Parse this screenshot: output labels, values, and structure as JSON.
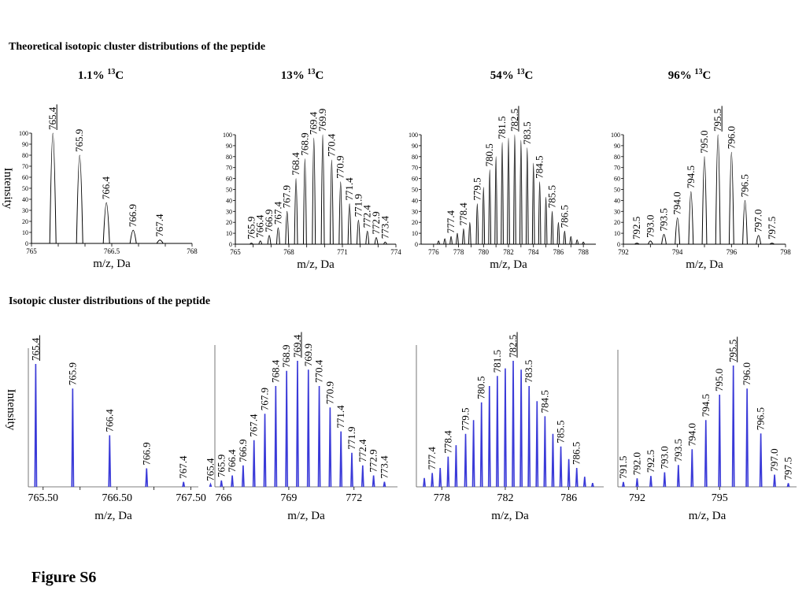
{
  "figure": {
    "section_theoretical": "Theoretical isotopic cluster distributions of the peptide",
    "section_observed": "Isotopic cluster distributions of the peptide",
    "label": "Figure S6"
  },
  "colors": {
    "theoretical": "#000000",
    "observed": "#3a3ad8"
  },
  "chart_data": [
    {
      "type": "bar",
      "group": "theoretical",
      "title_pre": "1.1% ",
      "title_sup": "13",
      "title_post": "C",
      "xlabel": "m/z, Da",
      "ylabel": "Intensity",
      "xlim": [
        765,
        768
      ],
      "ylim": [
        0,
        100
      ],
      "xticks": [
        765,
        765.5,
        766,
        766.5,
        767,
        767.5,
        768
      ],
      "xtick_labels": [
        "765",
        "",
        "",
        "766.5",
        "",
        "",
        "768"
      ],
      "yticks": [
        0,
        10,
        20,
        30,
        40,
        50,
        60,
        70,
        80,
        90,
        100
      ],
      "ytick_labels": [
        "0",
        "10",
        "20",
        "30",
        "40",
        "50",
        "60",
        "70",
        "80",
        "90",
        "100"
      ],
      "x": [
        765.4,
        765.9,
        766.4,
        766.9,
        767.4
      ],
      "values": [
        100,
        80,
        37,
        12,
        3
      ],
      "labels": [
        "765.4",
        "765.9",
        "766.4",
        "766.9",
        "767.4"
      ],
      "underline": "765.4"
    },
    {
      "type": "bar",
      "group": "theoretical",
      "title_pre": "13% ",
      "title_sup": "13",
      "title_post": "C",
      "xlabel": "m/z, Da",
      "xlim": [
        765,
        774
      ],
      "ylim": [
        0,
        100
      ],
      "xticks": [
        765,
        766,
        767,
        768,
        769,
        770,
        771,
        772,
        773,
        774
      ],
      "xtick_labels": [
        "765",
        "",
        "",
        "768",
        "",
        "",
        "771",
        "",
        "",
        "774"
      ],
      "yticks": [
        0,
        10,
        20,
        30,
        40,
        50,
        60,
        70,
        80,
        90,
        100
      ],
      "ytick_labels": [
        "0",
        "10",
        "20",
        "30",
        "40",
        "50",
        "60",
        "70",
        "80",
        "90",
        "100"
      ],
      "x": [
        765.9,
        766.4,
        766.9,
        767.4,
        767.9,
        768.4,
        768.9,
        769.4,
        769.9,
        770.4,
        770.9,
        771.4,
        771.9,
        772.4,
        772.9,
        773.4
      ],
      "values": [
        1,
        3,
        8,
        15,
        30,
        60,
        78,
        97,
        100,
        77,
        57,
        37,
        22,
        12,
        6,
        2
      ],
      "labels": [
        "765.9",
        "766.4",
        "766.9",
        "767.4",
        "767.9",
        "768.4",
        "768.9",
        "769.4",
        "769.9",
        "770.4",
        "770.9",
        "771.4",
        "771.9",
        "772.4",
        "772.9",
        "773.4"
      ],
      "underline": ""
    },
    {
      "type": "bar",
      "group": "theoretical",
      "title_pre": "54% ",
      "title_sup": "13",
      "title_post": "C",
      "xlabel": "m/z, Da",
      "xlim": [
        775,
        789
      ],
      "ylim": [
        0,
        100
      ],
      "xticks": [
        776,
        777,
        778,
        779,
        780,
        781,
        782,
        783,
        784,
        785,
        786,
        787,
        788
      ],
      "xtick_labels": [
        "776",
        "",
        "778",
        "",
        "780",
        "",
        "782",
        "",
        "784",
        "",
        "786",
        "",
        "788"
      ],
      "yticks": [
        0,
        10,
        20,
        30,
        40,
        50,
        60,
        70,
        80,
        90,
        100
      ],
      "ytick_labels": [
        "0",
        "10",
        "20",
        "30",
        "40",
        "50",
        "60",
        "70",
        "80",
        "90",
        "100"
      ],
      "x": [
        776.4,
        776.9,
        777.4,
        777.9,
        778.4,
        778.9,
        779.5,
        780.0,
        780.5,
        781.0,
        781.5,
        782.0,
        782.5,
        783.0,
        783.5,
        784.0,
        784.5,
        785.0,
        785.5,
        786.0,
        786.5,
        787.0,
        787.5,
        788.0
      ],
      "values": [
        3,
        5,
        7,
        10,
        14,
        20,
        37,
        52,
        68,
        80,
        93,
        97,
        100,
        95,
        88,
        74,
        57,
        43,
        30,
        20,
        12,
        7,
        4,
        2
      ],
      "labels": [
        "",
        "",
        "777.4",
        "",
        "778.4",
        "",
        "779.5",
        "",
        "780.5",
        "",
        "781.5",
        "",
        "782.5",
        "",
        "783.5",
        "",
        "784.5",
        "",
        "785.5",
        "",
        "786.5",
        "",
        "",
        ""
      ],
      "underline": "782.5"
    },
    {
      "type": "bar",
      "group": "theoretical",
      "title_pre": "96% ",
      "title_sup": "13",
      "title_post": "C",
      "xlabel": "m/z, Da",
      "xlim": [
        792,
        798
      ],
      "ylim": [
        0,
        100
      ],
      "xticks": [
        792,
        793,
        794,
        795,
        796,
        797,
        798
      ],
      "xtick_labels": [
        "792",
        "",
        "794",
        "",
        "796",
        "",
        "798"
      ],
      "yticks": [
        0,
        10,
        20,
        30,
        40,
        50,
        60,
        70,
        80,
        90,
        100
      ],
      "ytick_labels": [
        "0",
        "10",
        "20",
        "30",
        "40",
        "50",
        "60",
        "70",
        "80",
        "90",
        "100"
      ],
      "x": [
        792.5,
        793.0,
        793.5,
        794.0,
        794.5,
        795.0,
        795.5,
        796.0,
        796.5,
        797.0,
        797.5
      ],
      "values": [
        1,
        3,
        9,
        24,
        48,
        80,
        100,
        84,
        40,
        8,
        1
      ],
      "labels": [
        "792.5",
        "793.0",
        "793.5",
        "794.0",
        "794.5",
        "795.0",
        "795.5",
        "796.0",
        "796.5",
        "797.0",
        "797.5"
      ],
      "underline": "795.5"
    },
    {
      "type": "bar",
      "group": "observed",
      "xlabel": "m/z, Da",
      "ylabel": "Intensity",
      "xlim": [
        765.3,
        767.6
      ],
      "ylim": [
        0,
        100
      ],
      "xticks": [
        765.5,
        766,
        766.5,
        767,
        767.5
      ],
      "xtick_labels": [
        "765.50",
        "",
        "766.50",
        "",
        "767.50"
      ],
      "x": [
        765.4,
        765.9,
        766.4,
        766.9,
        767.4
      ],
      "values": [
        100,
        80,
        42,
        15,
        4
      ],
      "labels": [
        "765.4",
        "765.9",
        "766.4",
        "766.9",
        "767.4"
      ],
      "underline": "765.4"
    },
    {
      "type": "bar",
      "group": "observed",
      "xlabel": "m/z, Da",
      "xlim": [
        765.6,
        774.0
      ],
      "ylim": [
        0,
        100
      ],
      "xticks": [
        766,
        769,
        772
      ],
      "xtick_labels": [
        "766",
        "769",
        "772"
      ],
      "x": [
        765.4,
        765.9,
        766.4,
        766.9,
        767.4,
        767.9,
        768.4,
        768.9,
        769.4,
        769.9,
        770.4,
        770.9,
        771.4,
        771.9,
        772.4,
        772.9,
        773.4
      ],
      "values": [
        2,
        5,
        9,
        17,
        37,
        58,
        80,
        92,
        100,
        93,
        80,
        63,
        44,
        27,
        17,
        9,
        4
      ],
      "labels": [
        "765.4",
        "765.9",
        "766.4",
        "766.9",
        "767.4",
        "767.9",
        "768.4",
        "768.9",
        "769.4",
        "769.9",
        "770.4",
        "770.9",
        "771.4",
        "771.9",
        "772.4",
        "772.9",
        "773.4"
      ],
      "underline": "769.4"
    },
    {
      "type": "bar",
      "group": "observed",
      "xlabel": "m/z, Da",
      "xlim": [
        776.4,
        788.2
      ],
      "ylim": [
        0,
        100
      ],
      "xticks": [
        778,
        782,
        786
      ],
      "xtick_labels": [
        "778",
        "782",
        "786"
      ],
      "x": [
        776.9,
        777.4,
        777.9,
        778.4,
        778.9,
        779.5,
        780.0,
        780.5,
        781.0,
        781.5,
        782.0,
        782.5,
        783.0,
        783.5,
        784.0,
        784.5,
        785.0,
        785.5,
        786.0,
        786.5,
        787.0,
        787.5
      ],
      "values": [
        7,
        11,
        15,
        24,
        33,
        42,
        53,
        67,
        80,
        88,
        94,
        100,
        93,
        80,
        68,
        56,
        42,
        32,
        22,
        15,
        8,
        3
      ],
      "labels": [
        "",
        "777.4",
        "",
        "778.4",
        "",
        "779.5",
        "",
        "780.5",
        "",
        "781.5",
        "",
        "782.5",
        "",
        "783.5",
        "",
        "784.5",
        "",
        "785.5",
        "",
        "786.5",
        "",
        ""
      ],
      "underline": "782.5"
    },
    {
      "type": "bar",
      "group": "observed",
      "xlabel": "m/z, Da",
      "xlim": [
        791.3,
        797.8
      ],
      "ylim": [
        0,
        100
      ],
      "xticks": [
        792,
        795
      ],
      "xtick_labels": [
        "792",
        "795"
      ],
      "x": [
        791.5,
        792.0,
        792.5,
        793.0,
        793.5,
        794.0,
        794.5,
        795.0,
        795.5,
        796.0,
        796.5,
        797.0,
        797.5
      ],
      "values": [
        4,
        7,
        9,
        12,
        18,
        31,
        55,
        76,
        100,
        81,
        44,
        10,
        3
      ],
      "labels": [
        "791.5",
        "792.0",
        "792.5",
        "793.0",
        "793.5",
        "794.0",
        "794.5",
        "795.0",
        "795.5",
        "796.0",
        "796.5",
        "797.0",
        "797.5"
      ],
      "underline": "795.5"
    }
  ]
}
